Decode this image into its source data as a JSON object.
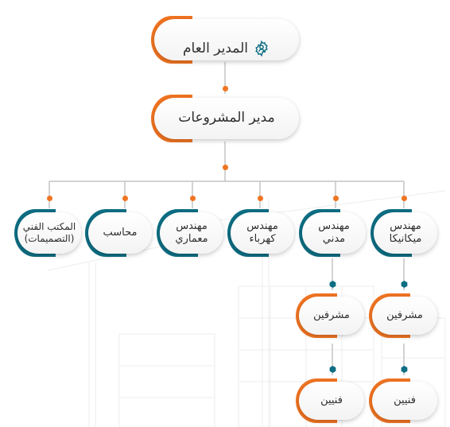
{
  "colors": {
    "orange": "#F07422",
    "teal": "#0E6E83",
    "text": "#2e2e2e",
    "line": "#bfbfbf"
  },
  "nodes": {
    "general_manager": {
      "label": "المدير العام",
      "icon": "gear-icon"
    },
    "projects_manager": {
      "label": "مدير المشروعات"
    },
    "mechanical_engineer": {
      "label": "مهندس\nميكانيكا"
    },
    "civil_engineer": {
      "label": "مهندس\nمدني"
    },
    "electrical_engineer": {
      "label": "مهندس\nكهرباء"
    },
    "architect_engineer": {
      "label": "مهندس\nمعماري"
    },
    "accountant": {
      "label": "محاسب"
    },
    "technical_office": {
      "label": "المكتب الفني\n(التصميمات)"
    },
    "supervisors_right": {
      "label": "مشرفين"
    },
    "supervisors_left": {
      "label": "مشرفين"
    },
    "technicians_right": {
      "label": "فنيين"
    },
    "technicians_left": {
      "label": "فنيين"
    }
  }
}
